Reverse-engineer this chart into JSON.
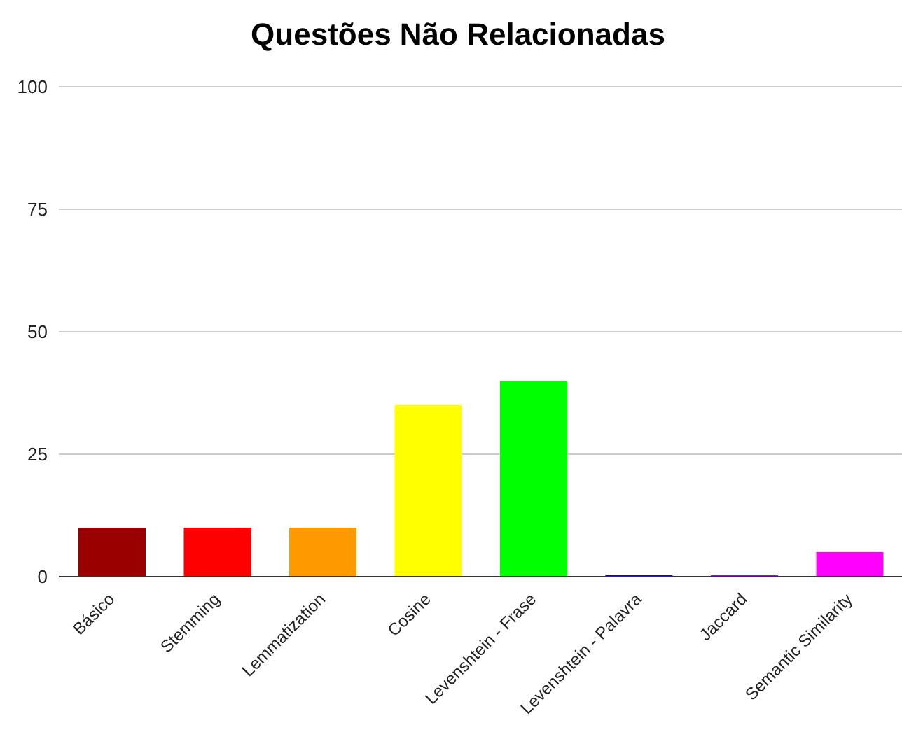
{
  "chart_data": {
    "type": "bar",
    "title": "Questões Não Relacionadas",
    "categories": [
      "Básico",
      "Stemming",
      "Lemmatization",
      "Cosine",
      "Levenshtein - Frase",
      "Levenshtein - Palavra",
      "Jaccard",
      "Semantic Similarity"
    ],
    "values": [
      10,
      10,
      10,
      35,
      40,
      0,
      0,
      5
    ],
    "colors": [
      "#990000",
      "#ff0000",
      "#ff9900",
      "#ffff00",
      "#00ff00",
      "#0000ff",
      "#9900ff",
      "#ff00ff"
    ],
    "ylim": [
      0,
      100
    ],
    "yticks": [
      0,
      25,
      50,
      75,
      100
    ],
    "grid": "y"
  }
}
